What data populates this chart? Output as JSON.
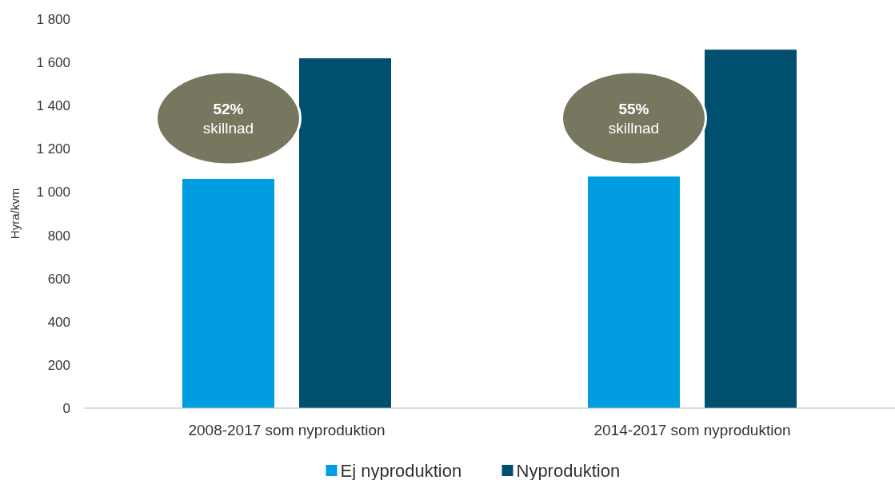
{
  "chart_data": {
    "type": "bar",
    "ylabel": "Hyra/kvm",
    "categories": [
      "2008-2017 som nyproduktion",
      "2014-2017 som nyproduktion"
    ],
    "series": [
      {
        "name": "Ej nyproduktion",
        "color": "#009ee0",
        "values": [
          1061,
          1072
        ]
      },
      {
        "name": "Nyproduktion",
        "color": "#004f6e",
        "values": [
          1619,
          1659
        ]
      }
    ],
    "ylim": [
      0,
      1800
    ],
    "yticks": [
      0,
      200,
      400,
      600,
      800,
      {
        "value": 1000,
        "label": "1 000"
      },
      {
        "value": 1200,
        "label": "1 200"
      },
      {
        "value": 1400,
        "label": "1 400"
      },
      {
        "value": 1600,
        "label": "1 600"
      },
      {
        "value": 1800,
        "label": "1 800"
      }
    ],
    "annotations": [
      "52%\nskillnad",
      "55%\nskillnad"
    ],
    "grid": false,
    "legend": "bottom"
  }
}
